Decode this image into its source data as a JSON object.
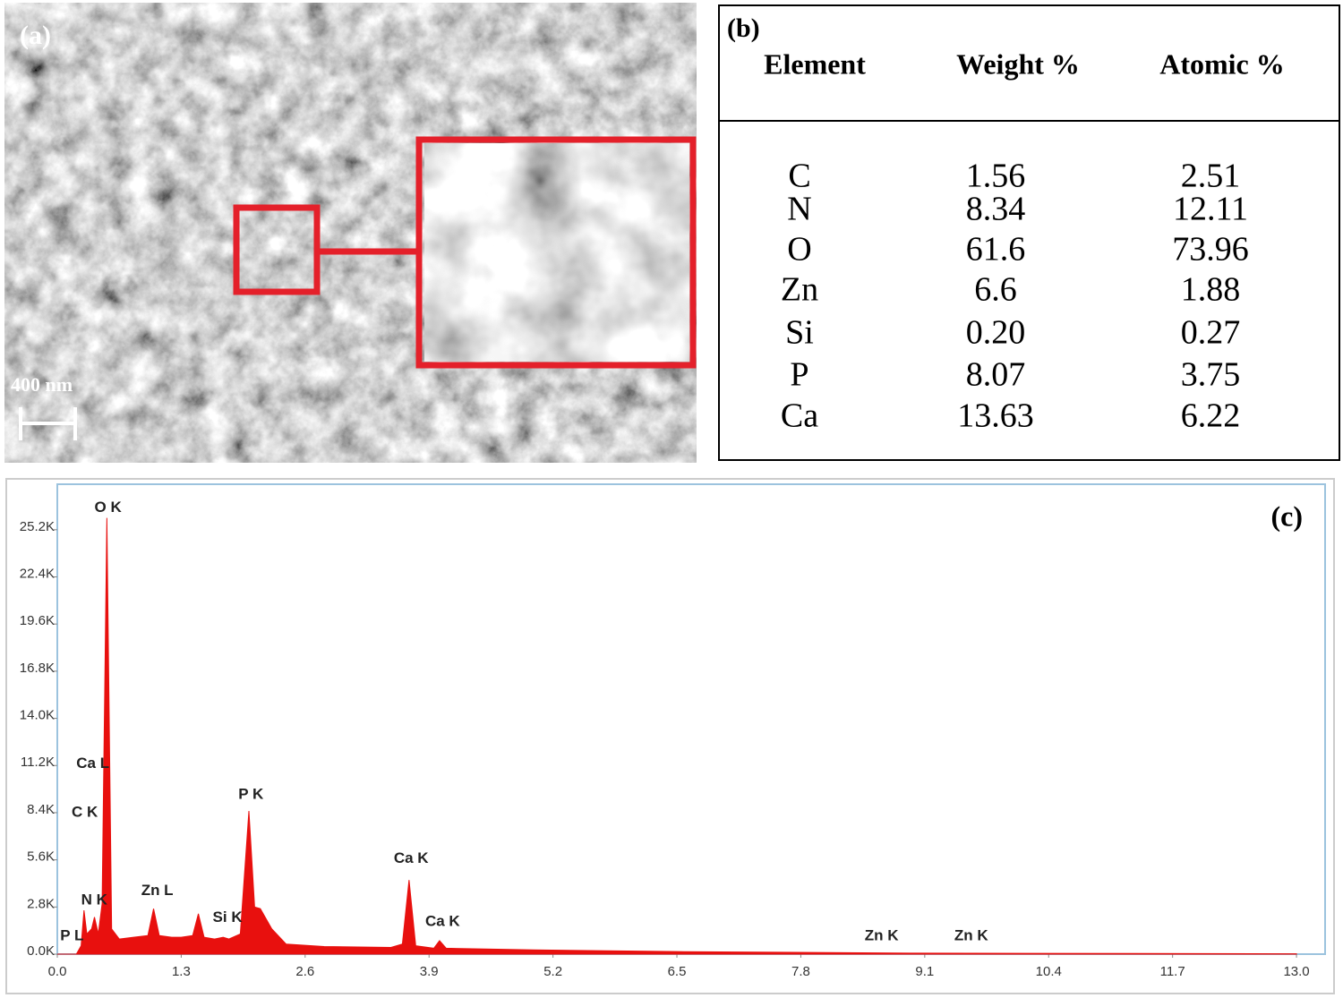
{
  "image_panel": {
    "label": "(a)",
    "scale_bar": "400 nm"
  },
  "table_panel": {
    "label": "(b)",
    "headers": [
      "Element",
      "Weight %",
      "Atomic %"
    ],
    "rows": [
      [
        "C",
        "1.56",
        "2.51"
      ],
      [
        "N",
        "8.34",
        "12.11"
      ],
      [
        "O",
        "61.6",
        "73.96"
      ],
      [
        "Zn",
        "6.6",
        "1.88"
      ],
      [
        "Si",
        "0.20",
        "0.27"
      ],
      [
        "P",
        "8.07",
        "3.75"
      ],
      [
        "Ca",
        "13.63",
        "6.22"
      ]
    ]
  },
  "chart_data": {
    "type": "area",
    "label": "(c)",
    "color": "#e8100e",
    "x": [
      0.0,
      0.2,
      0.25,
      0.28,
      0.31,
      0.36,
      0.39,
      0.43,
      0.47,
      0.52,
      0.57,
      0.65,
      0.8,
      0.95,
      1.01,
      1.07,
      1.2,
      1.3,
      1.42,
      1.48,
      1.54,
      1.65,
      1.74,
      1.8,
      1.92,
      2.01,
      2.07,
      2.13,
      2.25,
      2.4,
      2.8,
      3.5,
      3.62,
      3.69,
      3.76,
      3.95,
      4.01,
      4.08,
      5.0,
      6.5,
      9.0,
      13.0
    ],
    "values": [
      0,
      0,
      500,
      2600,
      1200,
      1500,
      2200,
      1200,
      3000,
      25900,
      1500,
      900,
      1000,
      1100,
      2700,
      1100,
      1000,
      1000,
      1100,
      2400,
      1000,
      900,
      1000,
      900,
      1200,
      8500,
      2800,
      2700,
      1500,
      600,
      450,
      400,
      600,
      4400,
      500,
      350,
      800,
      350,
      250,
      150,
      60,
      20
    ],
    "xlim": [
      0,
      13.3
    ],
    "ylim": [
      0,
      27900
    ],
    "xticks": [
      {
        "value": 0,
        "label": "0.0"
      },
      1.3,
      2.6,
      3.9,
      5.2,
      6.5,
      7.8,
      9.1,
      10.4,
      11.7,
      {
        "value": 13,
        "label": "13.0"
      }
    ],
    "yticks": [
      {
        "value": 0,
        "label": "0.0K"
      },
      {
        "value": 2800,
        "label": "2.8K"
      },
      {
        "value": 5600,
        "label": "5.6K"
      },
      {
        "value": 8400,
        "label": "8.4K"
      },
      {
        "value": 11200,
        "label": "11.2K"
      },
      {
        "value": 14000,
        "label": "14.0K"
      },
      {
        "value": 16800,
        "label": "16.8K"
      },
      {
        "value": 19600,
        "label": "19.6K"
      },
      {
        "value": 22400,
        "label": "22.4K"
      },
      {
        "value": 25200,
        "label": "25.2K"
      }
    ],
    "annotations": [
      {
        "text": "O K",
        "x": 0.39,
        "y": 26500
      },
      {
        "text": "Ca L",
        "x": 0.2,
        "y": 11280
      },
      {
        "text": "C K",
        "x": 0.15,
        "y": 8390
      },
      {
        "text": "N K",
        "x": 0.25,
        "y": 3200
      },
      {
        "text": "P L",
        "x": 0.03,
        "y": 1070
      },
      {
        "text": "Zn L",
        "x": 0.88,
        "y": 3740
      },
      {
        "text": "Si K",
        "x": 1.63,
        "y": 2140
      },
      {
        "text": "P K",
        "x": 1.9,
        "y": 9460
      },
      {
        "text": "Ca K",
        "x": 3.53,
        "y": 5660
      },
      {
        "text": "Ca K",
        "x": 3.86,
        "y": 1920
      },
      {
        "text": "Zn K",
        "x": 8.47,
        "y": 1070
      },
      {
        "text": "Zn K",
        "x": 9.41,
        "y": 1070
      }
    ]
  }
}
